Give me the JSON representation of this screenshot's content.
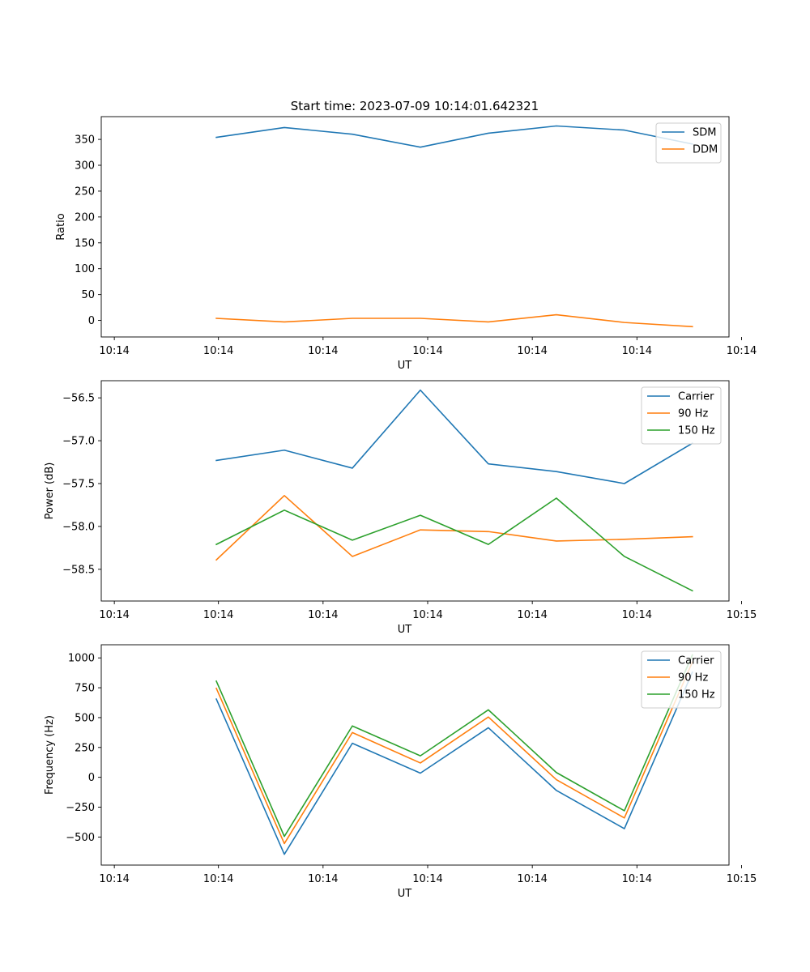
{
  "figure": {
    "title": "Start time: 2023-07-09 10:14:01.642321"
  },
  "chart_data": [
    {
      "type": "line",
      "title": "Start time: 2023-07-09 10:14:01.642321",
      "xlabel": "UT",
      "ylabel": "Ratio",
      "x": [
        1.5,
        2.15,
        2.8,
        3.45,
        4.1,
        4.75,
        5.4,
        6.05
      ],
      "xlim": [
        0.4,
        6.4
      ],
      "xticks": [
        0.5,
        1.5,
        2.5,
        3.5,
        4.5,
        5.5,
        6.5
      ],
      "xtick_labels": [
        "10:14",
        "10:14",
        "10:14",
        "10:14",
        "10:14",
        "10:14",
        "10:14"
      ],
      "xtick_positions": [
        0.525,
        1.52,
        2.52,
        3.52,
        4.52,
        5.52,
        6.52
      ],
      "ylim": [
        -32,
        394
      ],
      "yticks": [
        0,
        50,
        100,
        150,
        200,
        250,
        300,
        350
      ],
      "ytick_labels": [
        "0",
        "50",
        "100",
        "150",
        "200",
        "250",
        "300",
        "350"
      ],
      "legend": "top-right",
      "series": [
        {
          "name": "SDM",
          "color": "#1f77b4",
          "values": [
            354,
            373,
            360,
            335,
            362,
            376,
            368,
            341
          ]
        },
        {
          "name": "DDM",
          "color": "#ff7f0e",
          "values": [
            4,
            -3,
            4,
            4,
            -3,
            11,
            -4,
            -12
          ]
        }
      ]
    },
    {
      "type": "line",
      "xlabel": "UT",
      "ylabel": "Power (dB)",
      "x": [
        1.5,
        2.15,
        2.8,
        3.45,
        4.1,
        4.75,
        5.4,
        6.05
      ],
      "xlim": [
        0.4,
        6.4
      ],
      "xtick_labels": [
        "10:14",
        "10:14",
        "10:14",
        "10:14",
        "10:14",
        "10:14",
        "10:15"
      ],
      "xtick_positions": [
        0.525,
        1.52,
        2.52,
        3.52,
        4.52,
        5.52,
        6.52
      ],
      "ylim": [
        -58.87,
        -56.3
      ],
      "yticks": [
        -58.5,
        -58.0,
        -57.5,
        -57.0,
        -56.5
      ],
      "ytick_labels": [
        "−58.5",
        "−58.0",
        "−57.5",
        "−57.0",
        "−56.5"
      ],
      "legend": "top-right",
      "series": [
        {
          "name": "Carrier",
          "color": "#1f77b4",
          "values": [
            -57.23,
            -57.11,
            -57.32,
            -56.41,
            -57.27,
            -57.36,
            -57.5,
            -57.03
          ]
        },
        {
          "name": "90 Hz",
          "color": "#ff7f0e",
          "values": [
            -58.39,
            -57.64,
            -58.35,
            -58.04,
            -58.06,
            -58.17,
            -58.15,
            -58.12
          ]
        },
        {
          "name": "150 Hz",
          "color": "#2ca02c",
          "values": [
            -58.21,
            -57.81,
            -58.16,
            -57.87,
            -58.21,
            -57.67,
            -58.35,
            -58.75
          ]
        }
      ]
    },
    {
      "type": "line",
      "xlabel": "UT",
      "ylabel": "Frequency (Hz)",
      "x": [
        1.5,
        2.15,
        2.8,
        3.45,
        4.1,
        4.75,
        5.4,
        6.05
      ],
      "xlim": [
        0.4,
        6.4
      ],
      "xtick_labels": [
        "10:14",
        "10:14",
        "10:14",
        "10:14",
        "10:14",
        "10:14",
        "10:15"
      ],
      "xtick_positions": [
        0.525,
        1.52,
        2.52,
        3.52,
        4.52,
        5.52,
        6.52
      ],
      "ylim": [
        -735,
        1110
      ],
      "yticks": [
        -500,
        -250,
        0,
        250,
        500,
        750,
        1000
      ],
      "ytick_labels": [
        "−500",
        "−250",
        "0",
        "250",
        "500",
        "750",
        "1000"
      ],
      "legend": "top-right",
      "series": [
        {
          "name": "Carrier",
          "color": "#1f77b4",
          "values": [
            655,
            -645,
            285,
            35,
            415,
            -110,
            -430,
            880
          ]
        },
        {
          "name": "90 Hz",
          "color": "#ff7f0e",
          "values": [
            745,
            -555,
            375,
            120,
            505,
            -20,
            -340,
            965
          ]
        },
        {
          "name": "150 Hz",
          "color": "#2ca02c",
          "values": [
            805,
            -495,
            430,
            180,
            565,
            40,
            -280,
            1025
          ]
        }
      ]
    }
  ]
}
